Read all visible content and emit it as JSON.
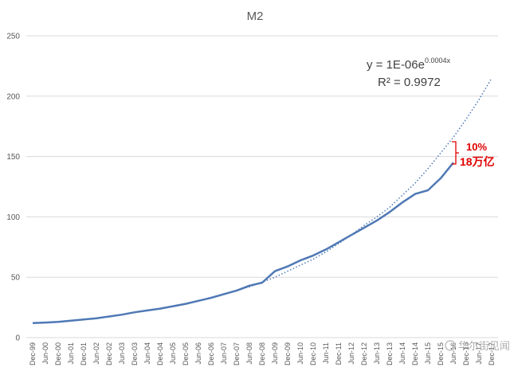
{
  "chart_data": {
    "type": "line",
    "title": "M2",
    "xlabel": "",
    "ylabel": "",
    "ylim": [
      0,
      250
    ],
    "y_ticks": [
      0,
      50,
      100,
      150,
      200,
      250
    ],
    "x_tick_labels": [
      "Dec-99",
      "Jun-00",
      "Dec-00",
      "Jun-01",
      "Dec-01",
      "Jun-02",
      "Dec-02",
      "Jun-03",
      "Dec-03",
      "Jun-04",
      "Dec-04",
      "Jun-05",
      "Dec-05",
      "Jun-06",
      "Dec-06",
      "Jun-07",
      "Dec-07",
      "Jun-08",
      "Dec-08",
      "Jun-09",
      "Dec-09",
      "Jun-10",
      "Dec-10",
      "Jun-11",
      "Dec-11",
      "Jun-12",
      "Dec-12",
      "Jun-13",
      "Dec-13",
      "Jun-14",
      "Dec-14",
      "Jun-15",
      "Dec-15",
      "Jun-16",
      "Dec-16",
      "Jun-17",
      "Dec-17"
    ],
    "grid": "horizontal",
    "series": [
      {
        "name": "",
        "style": "solid",
        "color": "#4f79b5",
        "x": [
          "Dec-99",
          "Jun-00",
          "Dec-00",
          "Jun-01",
          "Dec-01",
          "Jun-02",
          "Dec-02",
          "Jun-03",
          "Dec-03",
          "Jun-04",
          "Dec-04",
          "Jun-05",
          "Dec-05",
          "Jun-06",
          "Dec-06",
          "Jun-07",
          "Dec-07",
          "Jun-08",
          "Dec-08",
          "Jun-09",
          "Dec-09",
          "Jun-10",
          "Dec-10",
          "Jun-11",
          "Dec-11",
          "Jun-12",
          "Dec-12",
          "Jun-13",
          "Dec-13",
          "Jun-14",
          "Dec-14",
          "Jun-15",
          "Dec-15",
          "Jun-16"
        ],
        "values": [
          12,
          12.5,
          13,
          14,
          15,
          16,
          17.5,
          19,
          21,
          22.5,
          24,
          26,
          28,
          30.5,
          33,
          36,
          39,
          43,
          45.5,
          55,
          59,
          64,
          68,
          73,
          79,
          85,
          91,
          97,
          104,
          112,
          119,
          122,
          132,
          145
        ]
      },
      {
        "name": "",
        "style": "dotted",
        "color": "#4f79b5",
        "x": [
          "Dec-07",
          "Jun-08",
          "Dec-08",
          "Jun-09",
          "Dec-09",
          "Jun-10",
          "Dec-10",
          "Jun-11",
          "Dec-11",
          "Jun-12",
          "Dec-12",
          "Jun-13",
          "Dec-13",
          "Jun-14",
          "Dec-14",
          "Jun-15",
          "Dec-15",
          "Jun-16",
          "Dec-16",
          "Jun-17",
          "Dec-17"
        ],
        "values": [
          39,
          42,
          46,
          50,
          55,
          60,
          65,
          71,
          78,
          85,
          93,
          100,
          108,
          118,
          128,
          140,
          153,
          166,
          181,
          197,
          215
        ]
      }
    ],
    "equation": {
      "text": "y = 1E-06e",
      "exponent": "0.0004x",
      "r2": "R² = 0.9972"
    },
    "annotation": {
      "percent": "10%",
      "amount": "18万亿",
      "color": "#e00000"
    },
    "watermark": "华尔街见闻"
  }
}
